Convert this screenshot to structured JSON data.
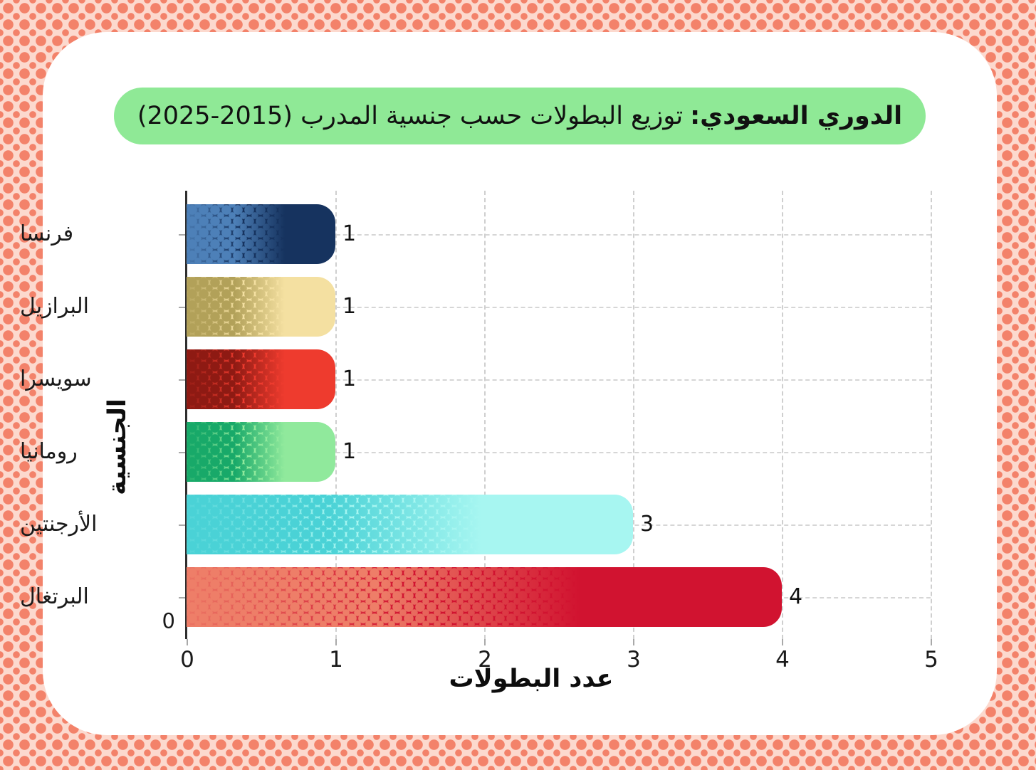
{
  "page": {
    "background_base_color": "#fcd9ce",
    "background_dot_color": "#f3826a",
    "card_color": "#ffffff"
  },
  "title": {
    "full": "الدوري السعودي: توزيع البطولات حسب جنسية المدرب (2015-2025)",
    "lead": "الدوري السعودي:",
    "rest": "توزيع البطولات حسب جنسية المدرب (2015-2025)",
    "pill_color": "#8fe996",
    "text_color": "#111111"
  },
  "axes": {
    "spine_color": "#2f2f2f",
    "grid_color": "#d3d3d3",
    "tick_color": "#a9a9a9",
    "label_color": "#1a1a1a"
  },
  "chart_data": {
    "type": "bar",
    "orientation": "horizontal",
    "title": "الدوري السعودي: توزيع البطولات حسب جنسية المدرب (2015-2025)",
    "xlabel": "عدد البطولات",
    "ylabel": "الجنسية",
    "xlim": [
      0,
      5
    ],
    "x_ticks": [
      "0",
      "1",
      "2",
      "3",
      "4",
      "5"
    ],
    "grid": "dashed",
    "legend": "none",
    "origin_label": "0",
    "categories": [
      "فرنسا",
      "البرازيل",
      "سويسرا",
      "رومانيا",
      "الأرجنتين",
      "البرتغال"
    ],
    "values": [
      1,
      1,
      1,
      1,
      3,
      4
    ],
    "bars": [
      {
        "key": "france",
        "label": "فرنسا",
        "value": 1,
        "value_label": "1",
        "solid_color": "#16335f",
        "dot_color": "#4d80b8"
      },
      {
        "key": "brazil",
        "label": "البرازيل",
        "value": 1,
        "value_label": "1",
        "solid_color": "#f4e0a1",
        "dot_color": "#b2a159"
      },
      {
        "key": "switzerland",
        "label": "سويسرا",
        "value": 1,
        "value_label": "1",
        "solid_color": "#ee3b2e",
        "dot_color": "#8e1a13"
      },
      {
        "key": "romania",
        "label": "رومانيا",
        "value": 1,
        "value_label": "1",
        "solid_color": "#90e99c",
        "dot_color": "#18a969"
      },
      {
        "key": "argentina",
        "label": "الأرجنتين",
        "value": 3,
        "value_label": "3",
        "solid_color": "#a7f6f1",
        "dot_color": "#4ad2d6"
      },
      {
        "key": "portugal",
        "label": "البرتغال",
        "value": 4,
        "value_label": "4",
        "solid_color": "#d11330",
        "dot_color": "#ee7e68"
      }
    ]
  }
}
